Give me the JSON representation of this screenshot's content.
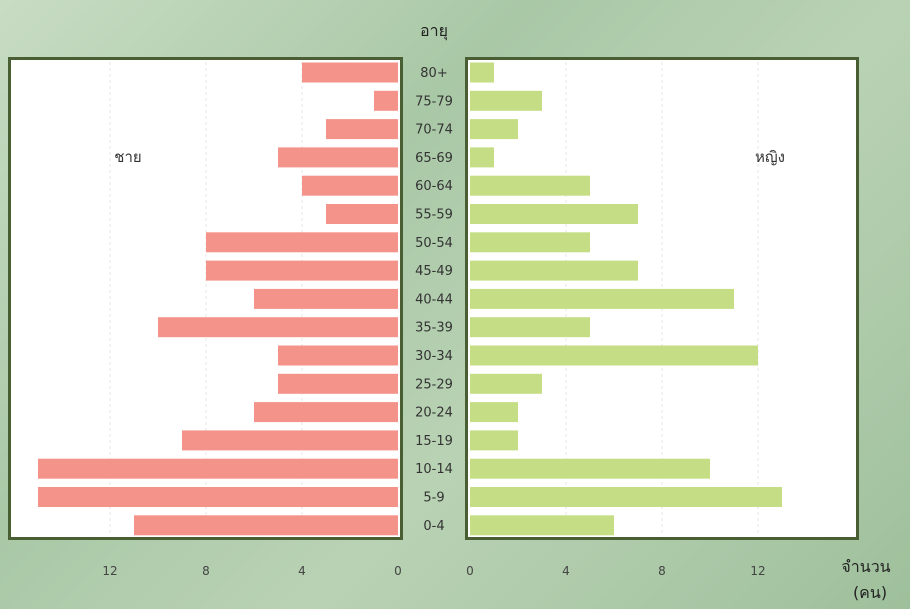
{
  "chart_data": {
    "type": "bar",
    "title": "",
    "age_axis_label": "อายุ",
    "xlabel": [
      "จำนวน",
      "(คน)"
    ],
    "categories": [
      "80+",
      "75-79",
      "70-74",
      "65-69",
      "60-64",
      "55-59",
      "50-54",
      "45-49",
      "40-44",
      "35-39",
      "30-34",
      "25-29",
      "20-24",
      "15-19",
      "10-14",
      "5-9",
      "0-4"
    ],
    "series": [
      {
        "name": "ชาย",
        "color": "#f4938a",
        "values": [
          4,
          1,
          3,
          5,
          4,
          3,
          8,
          8,
          6,
          10,
          5,
          5,
          6,
          9,
          15,
          15,
          11
        ]
      },
      {
        "name": "หญิง",
        "color": "#c5de86",
        "values": [
          1,
          3,
          2,
          1,
          5,
          7,
          5,
          7,
          11,
          5,
          12,
          3,
          2,
          2,
          10,
          13,
          6
        ]
      }
    ],
    "xlim": [
      0,
      15
    ],
    "ticks": [
      0,
      4,
      8,
      12
    ],
    "tick_labels_left": [
      "12",
      "8",
      "4",
      "0"
    ],
    "tick_labels_right": [
      "0",
      "4",
      "8",
      "12"
    ],
    "grid": true
  }
}
